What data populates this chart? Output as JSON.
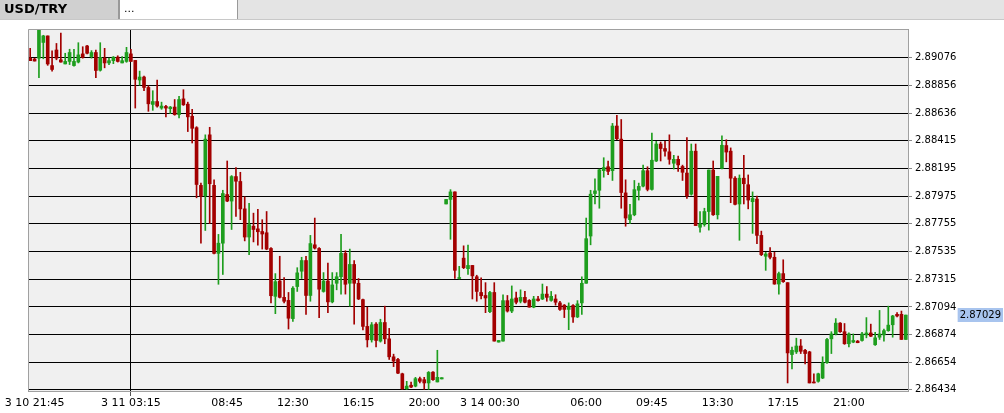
{
  "chart_data": {
    "type": "candlestick",
    "title": "USD/TRY",
    "subtitle": "...",
    "legend": false,
    "grid": true,
    "categories": [
      null,
      "3 10 21:45",
      null,
      null,
      null,
      null,
      null,
      null,
      null,
      null,
      null,
      null,
      null,
      null,
      null,
      null,
      null,
      null,
      null,
      null,
      null,
      null,
      null,
      "3 11 03:15",
      null,
      null,
      null,
      null,
      null,
      null,
      null,
      null,
      null,
      null,
      null,
      null,
      null,
      null,
      null,
      null,
      null,
      null,
      null,
      null,
      null,
      "08:45",
      null,
      null,
      null,
      null,
      null,
      null,
      null,
      null,
      null,
      null,
      null,
      null,
      null,
      null,
      "12:30",
      null,
      null,
      null,
      null,
      null,
      null,
      null,
      null,
      null,
      null,
      null,
      null,
      null,
      null,
      "16:15",
      null,
      null,
      null,
      null,
      null,
      null,
      null,
      null,
      null,
      null,
      null,
      null,
      null,
      null,
      "20:00",
      null,
      null,
      null,
      null,
      null,
      null,
      null,
      null,
      null,
      null,
      null,
      null,
      null,
      null,
      "3 14 00:30",
      null,
      null,
      null,
      null,
      null,
      null,
      null,
      null,
      null,
      null,
      null,
      null,
      null,
      null,
      null,
      null,
      null,
      null,
      null,
      null,
      null,
      "06:00",
      null,
      null,
      null,
      null,
      null,
      null,
      null,
      null,
      null,
      null,
      null,
      null,
      null,
      null,
      "09:45",
      null,
      null,
      null,
      null,
      null,
      null,
      null,
      null,
      null,
      null,
      null,
      null,
      null,
      null,
      "13:30",
      null,
      null,
      null,
      null,
      null,
      null,
      null,
      null,
      null,
      null,
      null,
      null,
      null,
      null,
      "17:15",
      null,
      null,
      null,
      null,
      null,
      null,
      null,
      null,
      null,
      null,
      null,
      null,
      null,
      null,
      "21:00",
      null,
      null,
      null,
      null,
      null,
      null,
      null,
      null,
      null,
      null,
      null,
      null,
      null
    ],
    "ohlc": [
      [
        2.89073,
        2.89151,
        2.89053,
        2.89053
      ],
      [
        2.89066,
        2.89073,
        2.8905,
        2.8905
      ],
      [
        2.89073,
        2.89302,
        2.88918,
        2.89299
      ],
      [
        2.89198,
        2.89255,
        2.89068,
        2.8925
      ],
      [
        2.8925,
        2.8925,
        2.89016,
        2.89027
      ],
      [
        2.89014,
        2.89131,
        2.8897,
        2.88983
      ],
      [
        2.89138,
        2.8919,
        2.8906,
        2.89073
      ],
      [
        2.8906,
        2.89273,
        2.89042,
        2.89042
      ],
      [
        2.89027,
        2.89112,
        2.89027,
        2.89047
      ],
      [
        2.89047,
        2.89144,
        2.89022,
        2.89118
      ],
      [
        2.89014,
        2.89144,
        2.89009,
        2.89047
      ],
      [
        2.89042,
        2.89196,
        2.89035,
        2.89099
      ],
      [
        2.89107,
        2.89164,
        2.89073,
        2.89079
      ],
      [
        2.8917,
        2.89175,
        2.89107,
        2.89112
      ],
      [
        2.89086,
        2.89133,
        2.89073,
        2.89118
      ],
      [
        2.89118,
        2.89138,
        2.88918,
        2.88975
      ],
      [
        2.88977,
        2.89196,
        2.8897,
        2.89079
      ],
      [
        2.89073,
        2.89151,
        2.88996,
        2.89035
      ],
      [
        2.89035,
        2.89073,
        2.89022,
        2.89053
      ],
      [
        2.89053,
        2.89086,
        2.89029,
        2.89081
      ],
      [
        2.89081,
        2.89092,
        2.89042,
        2.89047
      ],
      [
        2.89035,
        2.89086,
        2.89035,
        2.89053
      ],
      [
        2.89047,
        2.89159,
        2.8904,
        2.89118
      ],
      [
        2.89107,
        2.89144,
        2.89047,
        2.89047
      ],
      [
        2.89055,
        2.89055,
        2.88676,
        2.88905
      ],
      [
        2.88899,
        2.8897,
        2.88858,
        2.88923
      ],
      [
        2.88923,
        2.88931,
        2.88814,
        2.8884
      ],
      [
        2.8884,
        2.88853,
        2.8865,
        2.8871
      ],
      [
        2.88705,
        2.88814,
        2.88658,
        2.88728
      ],
      [
        2.88728,
        2.88899,
        2.88684,
        2.88692
      ],
      [
        2.88676,
        2.88723,
        2.88666,
        2.88692
      ],
      [
        2.88689,
        2.88697,
        2.88606,
        2.88676
      ],
      [
        2.88671,
        2.88689,
        2.88632,
        2.88684
      ],
      [
        2.88684,
        2.88744,
        2.88619,
        2.88624
      ],
      [
        2.88624,
        2.8877,
        2.88598,
        2.88744
      ],
      [
        2.88749,
        2.88822,
        2.88697,
        2.88702
      ],
      [
        2.88707,
        2.88723,
        2.88489,
        2.88606
      ],
      [
        2.88611,
        2.88666,
        2.88398,
        2.88515
      ],
      [
        2.8852,
        2.88528,
        2.87962,
        2.88068
      ],
      [
        2.88061,
        2.88079,
        2.87601,
        2.87975
      ],
      [
        2.87978,
        2.88463,
        2.87702,
        2.88429
      ],
      [
        2.88463,
        2.88523,
        2.87757,
        2.88074
      ],
      [
        2.88061,
        2.88105,
        2.87515,
        2.8752
      ],
      [
        2.8752,
        2.87671,
        2.87274,
        2.87601
      ],
      [
        2.87601,
        2.88022,
        2.87352,
        2.87996
      ],
      [
        2.87988,
        2.88255,
        2.87931,
        2.87936
      ],
      [
        2.87936,
        2.88139,
        2.8771,
        2.88131
      ],
      [
        2.88131,
        2.88203,
        2.87814,
        2.88094
      ],
      [
        2.88092,
        2.88165,
        2.87788,
        2.87874
      ],
      [
        2.87874,
        2.8797,
        2.87619,
        2.8765
      ],
      [
        2.8765,
        2.87918,
        2.8751,
        2.87749
      ],
      [
        2.87736,
        2.8784,
        2.87611,
        2.8771
      ],
      [
        2.87715,
        2.87871,
        2.87585,
        2.87692
      ],
      [
        2.87694,
        2.87788,
        2.87554,
        2.87674
      ],
      [
        2.87684,
        2.87853,
        2.87549,
        2.87554
      ],
      [
        2.87559,
        2.87567,
        2.87126,
        2.87183
      ],
      [
        2.87178,
        2.87359,
        2.8704,
        2.87295
      ],
      [
        2.873,
        2.87497,
        2.87165,
        2.8717
      ],
      [
        2.8717,
        2.87328,
        2.87126,
        2.87139
      ],
      [
        2.87146,
        2.87209,
        2.86918,
        2.87004
      ],
      [
        2.87001,
        2.87256,
        2.86978,
        2.87243
      ],
      [
        2.87256,
        2.87406,
        2.87217,
        2.87365
      ],
      [
        2.87378,
        2.87489,
        2.8732,
        2.87463
      ],
      [
        2.87463,
        2.87497,
        2.87035,
        2.87185
      ],
      [
        2.87185,
        2.87663,
        2.87139,
        2.87598
      ],
      [
        2.87588,
        2.87801,
        2.87554,
        2.87562
      ],
      [
        2.87559,
        2.87567,
        2.87009,
        2.87235
      ],
      [
        2.87217,
        2.87367,
        2.87211,
        2.873
      ],
      [
        2.873,
        2.87443,
        2.87048,
        2.87134
      ],
      [
        2.87134,
        2.87367,
        2.87126,
        2.87269
      ],
      [
        2.87282,
        2.87367,
        2.8723,
        2.87334
      ],
      [
        2.87334,
        2.87671,
        2.87196,
        2.8752
      ],
      [
        2.8752,
        2.87541,
        2.87196,
        2.87274
      ],
      [
        2.87282,
        2.87554,
        2.871,
        2.87432
      ],
      [
        2.87432,
        2.87463,
        2.86957,
        2.87282
      ],
      [
        2.87282,
        2.8732,
        2.87152,
        2.87157
      ],
      [
        2.87152,
        2.87157,
        2.8691,
        2.86939
      ],
      [
        2.86939,
        2.87092,
        2.86775,
        2.86832
      ],
      [
        2.86832,
        2.8697,
        2.86814,
        2.86952
      ],
      [
        2.86957,
        2.8697,
        2.86775,
        2.86827
      ],
      [
        2.86822,
        2.86996,
        2.86814,
        2.8697
      ],
      [
        2.8697,
        2.871,
        2.86801,
        2.8684
      ],
      [
        2.8684,
        2.86923,
        2.86676,
        2.86697
      ],
      [
        2.86697,
        2.86718,
        2.86619,
        2.86663
      ],
      [
        2.86676,
        2.86684,
        2.86562,
        2.86567
      ],
      [
        2.86562,
        2.86567,
        2.86438,
        2.86443
      ],
      [
        2.86443,
        2.86502,
        2.86438,
        2.86464
      ],
      [
        2.86471,
        2.86495,
        2.86451,
        2.86456
      ],
      [
        2.86464,
        2.86534,
        2.86458,
        2.86523
      ],
      [
        2.86523,
        2.86536,
        2.86489,
        2.86502
      ],
      [
        2.86515,
        2.86534,
        2.86438,
        2.86489
      ],
      [
        2.86489,
        2.8658,
        2.86438,
        2.86573
      ],
      [
        2.86575,
        2.8658,
        2.8651,
        2.86515
      ],
      [
        2.86497,
        2.86749,
        2.86497,
        2.86534
      ],
      [
        2.86521,
        2.86531,
        2.86521,
        2.86531
      ],
      [
        2.87913,
        2.87949,
        2.87913,
        2.87949
      ],
      [
        2.87949,
        2.88027,
        2.87632,
        2.88009
      ],
      [
        2.88009,
        2.88009,
        2.8732,
        2.87385
      ],
      [
        2.8732,
        2.87417,
        2.87315,
        2.87326
      ],
      [
        2.87482,
        2.8758,
        2.87398,
        2.87406
      ],
      [
        2.87398,
        2.87585,
        2.87352,
        2.87424
      ],
      [
        2.87424,
        2.87424,
        2.87157,
        2.87341
      ],
      [
        2.87334,
        2.87346,
        2.87139,
        2.87217
      ],
      [
        2.87209,
        2.87326,
        2.87157,
        2.87183
      ],
      [
        2.87185,
        2.87287,
        2.87048,
        2.87165
      ],
      [
        2.87056,
        2.87217,
        2.87048,
        2.87209
      ],
      [
        2.87209,
        2.87287,
        2.86822,
        2.86822
      ],
      [
        2.86814,
        2.86827,
        2.86814,
        2.86827
      ],
      [
        2.86822,
        2.87191,
        2.86822,
        2.87144
      ],
      [
        2.87144,
        2.87185,
        2.87053,
        2.87061
      ],
      [
        2.87061,
        2.87261,
        2.87048,
        2.87157
      ],
      [
        2.87165,
        2.87211,
        2.87118,
        2.87131
      ],
      [
        2.87139,
        2.8723,
        2.87126,
        2.8717
      ],
      [
        2.8717,
        2.87217,
        2.87126,
        2.87131
      ],
      [
        2.87146,
        2.87152,
        2.87092,
        2.87092
      ],
      [
        2.87092,
        2.87178,
        2.87087,
        2.87157
      ],
      [
        2.87157,
        2.87178,
        2.87139,
        2.87144
      ],
      [
        2.87157,
        2.87276,
        2.87152,
        2.87196
      ],
      [
        2.87196,
        2.87256,
        2.87139,
        2.8717
      ],
      [
        2.87146,
        2.87217,
        2.87139,
        2.87178
      ],
      [
        2.87157,
        2.87191,
        2.87108,
        2.87131
      ],
      [
        2.87126,
        2.87139,
        2.87066,
        2.87074
      ],
      [
        2.87108,
        2.87113,
        2.87009,
        2.87074
      ],
      [
        2.87074,
        2.87126,
        2.86913,
        2.871
      ],
      [
        2.87105,
        2.87113,
        2.8697,
        2.87014
      ],
      [
        2.87014,
        2.87144,
        2.87009,
        2.87118
      ],
      [
        2.87126,
        2.87334,
        2.87035,
        2.87282
      ],
      [
        2.87282,
        2.87801,
        2.87282,
        2.87637
      ],
      [
        2.87658,
        2.88022,
        2.87588,
        2.87991
      ],
      [
        2.87996,
        2.88113,
        2.87913,
        2.88017
      ],
      [
        2.88022,
        2.88191,
        2.87879,
        2.88185
      ],
      [
        2.88178,
        2.88281,
        2.88126,
        2.88203
      ],
      [
        2.88209,
        2.88255,
        2.88146,
        2.88172
      ],
      [
        2.88178,
        2.88554,
        2.881,
        2.88533
      ],
      [
        2.88533,
        2.88619,
        2.88424,
        2.88432
      ],
      [
        2.88429,
        2.88585,
        2.87879,
        2.88004
      ],
      [
        2.88001,
        2.88105,
        2.87736,
        2.87801
      ],
      [
        2.87788,
        2.8791,
        2.87757,
        2.87827
      ],
      [
        2.87827,
        2.881,
        2.87819,
        2.88027
      ],
      [
        2.88022,
        2.88079,
        2.87944,
        2.88053
      ],
      [
        2.88055,
        2.88222,
        2.88048,
        2.88178
      ],
      [
        2.88178,
        2.88209,
        2.88017,
        2.88029
      ],
      [
        2.88029,
        2.88476,
        2.88022,
        2.88261
      ],
      [
        2.88255,
        2.88411,
        2.8825,
        2.8839
      ],
      [
        2.8839,
        2.88406,
        2.88255,
        2.88354
      ],
      [
        2.88354,
        2.88411,
        2.88294,
        2.88333
      ],
      [
        2.88328,
        2.88463,
        2.88229,
        2.88268
      ],
      [
        2.88237,
        2.883,
        2.88191,
        2.88268
      ],
      [
        2.88268,
        2.88294,
        2.88172,
        2.88224
      ],
      [
        2.88211,
        2.88222,
        2.881,
        2.88165
      ],
      [
        2.88159,
        2.88442,
        2.87957,
        2.87978
      ],
      [
        2.87991,
        2.8839,
        2.87983,
        2.88333
      ],
      [
        2.88333,
        2.8839,
        2.87741,
        2.87741
      ],
      [
        2.87728,
        2.87853,
        2.87689,
        2.87754
      ],
      [
        2.87749,
        2.87879,
        2.87736,
        2.87853
      ],
      [
        2.87853,
        2.88183,
        2.87705,
        2.88183
      ],
      [
        2.88183,
        2.88255,
        2.87822,
        2.87827
      ],
      [
        2.87827,
        2.88133,
        2.87793,
        2.88133
      ],
      [
        2.88196,
        2.88455,
        2.88191,
        2.8838
      ],
      [
        2.88378,
        2.88424,
        2.88248,
        2.88326
      ],
      [
        2.88333,
        2.88359,
        2.87923,
        2.88118
      ],
      [
        2.88118,
        2.88131,
        2.87905,
        2.8791
      ],
      [
        2.87913,
        2.88144,
        2.87624,
        2.88118
      ],
      [
        2.88118,
        2.883,
        2.87913,
        2.88074
      ],
      [
        2.88066,
        2.88144,
        2.87874,
        2.87944
      ],
      [
        2.87931,
        2.88009,
        2.87679,
        2.87957
      ],
      [
        2.87952,
        2.87975,
        2.87598,
        2.87663
      ],
      [
        2.87663,
        2.87697,
        2.87502,
        2.8751
      ],
      [
        2.87497,
        2.87528,
        2.87385,
        2.87515
      ],
      [
        2.87523,
        2.87567,
        2.87476,
        2.87489
      ],
      [
        2.87489,
        2.87528,
        2.87274,
        2.87276
      ],
      [
        2.87276,
        2.87372,
        2.87196,
        2.87359
      ],
      [
        2.87359,
        2.87469,
        2.87289,
        2.87295
      ],
      [
        2.87287,
        2.87287,
        2.86489,
        2.86728
      ],
      [
        2.86715,
        2.86775,
        2.86601,
        2.86749
      ],
      [
        2.86736,
        2.86845,
        2.86723,
        2.86783
      ],
      [
        2.86783,
        2.86835,
        2.86723,
        2.86741
      ],
      [
        2.86749,
        2.86757,
        2.8664,
        2.86723
      ],
      [
        2.86736,
        2.86741,
        2.86489,
        2.86489
      ],
      [
        2.86497,
        2.86562,
        2.86489,
        2.86489
      ],
      [
        2.86502,
        2.86567,
        2.86495,
        2.86562
      ],
      [
        2.86528,
        2.86697,
        2.86523,
        2.8665
      ],
      [
        2.8665,
        2.86845,
        2.86645,
        2.86835
      ],
      [
        2.8684,
        2.86897,
        2.86723,
        2.86879
      ],
      [
        2.86879,
        2.87001,
        2.86871,
        2.86965
      ],
      [
        2.86965,
        2.8697,
        2.86892,
        2.86897
      ],
      [
        2.86897,
        2.86962,
        2.86796,
        2.86801
      ],
      [
        2.86801,
        2.86887,
        2.86775,
        2.86879
      ],
      [
        2.86814,
        2.86879,
        2.86809,
        2.86827
      ],
      [
        2.86822,
        2.86827,
        2.86809,
        2.86809
      ],
      [
        2.86827,
        2.86892,
        2.86822,
        2.86879
      ],
      [
        2.86871,
        2.87009,
        2.86848,
        2.86887
      ],
      [
        2.86887,
        2.86957,
        2.86858,
        2.86861
      ],
      [
        2.86793,
        2.86892,
        2.86788,
        2.86848
      ],
      [
        2.86853,
        2.87066,
        2.86835,
        2.86879
      ],
      [
        2.86871,
        2.86918,
        2.86822,
        2.86905
      ],
      [
        2.86905,
        2.871,
        2.869,
        2.86949
      ],
      [
        2.86952,
        2.87027,
        2.86853,
        2.87022
      ],
      [
        2.87035,
        2.87048,
        2.87014,
        2.87022
      ],
      [
        2.87035,
        2.87061,
        2.86835,
        2.86835
      ],
      [
        2.86835,
        2.87029,
        2.86835,
        2.87029
      ]
    ],
    "colors": [
      "#a30000",
      "#a30000",
      "#1e9e1e",
      "#1e9e1e",
      "#a30000",
      "#a30000",
      "#a30000",
      "#a30000",
      "#1e9e1e",
      "#1e9e1e",
      "#1e9e1e",
      "#1e9e1e",
      "#a30000",
      "#a30000",
      "#1e9e1e",
      "#a30000",
      "#1e9e1e",
      "#a30000",
      "#1e9e1e",
      "#1e9e1e",
      "#a30000",
      "#1e9e1e",
      "#1e9e1e",
      "#a30000",
      "#a30000",
      "#1e9e1e",
      "#a30000",
      "#a30000",
      "#1e9e1e",
      "#a30000",
      "#1e9e1e",
      "#a30000",
      "#1e9e1e",
      "#a30000",
      "#1e9e1e",
      "#a30000",
      "#a30000",
      "#a30000",
      "#a30000",
      "#a30000",
      "#1e9e1e",
      "#a30000",
      "#a30000",
      "#1e9e1e",
      "#1e9e1e",
      "#a30000",
      "#1e9e1e",
      "#a30000",
      "#a30000",
      "#a30000",
      "#1e9e1e",
      "#a30000",
      "#a30000",
      "#a30000",
      "#a30000",
      "#a30000",
      "#1e9e1e",
      "#a30000",
      "#a30000",
      "#a30000",
      "#1e9e1e",
      "#1e9e1e",
      "#1e9e1e",
      "#a30000",
      "#1e9e1e",
      "#a30000",
      "#a30000",
      "#1e9e1e",
      "#a30000",
      "#1e9e1e",
      "#1e9e1e",
      "#1e9e1e",
      "#a30000",
      "#1e9e1e",
      "#a30000",
      "#a30000",
      "#a30000",
      "#a30000",
      "#1e9e1e",
      "#a30000",
      "#1e9e1e",
      "#a30000",
      "#a30000",
      "#a30000",
      "#a30000",
      "#a30000",
      "#1e9e1e",
      "#a30000",
      "#1e9e1e",
      "#a30000",
      "#a30000",
      "#1e9e1e",
      "#a30000",
      "#1e9e1e",
      "#1e9e1e",
      "#1e9e1e",
      "#1e9e1e",
      "#a30000",
      "#1e9e1e",
      "#a30000",
      "#1e9e1e",
      "#a30000",
      "#a30000",
      "#a30000",
      "#a30000",
      "#1e9e1e",
      "#a30000",
      "#1e9e1e",
      "#1e9e1e",
      "#a30000",
      "#1e9e1e",
      "#a30000",
      "#1e9e1e",
      "#a30000",
      "#a30000",
      "#1e9e1e",
      "#a30000",
      "#1e9e1e",
      "#a30000",
      "#1e9e1e",
      "#a30000",
      "#a30000",
      "#a30000",
      "#1e9e1e",
      "#a30000",
      "#1e9e1e",
      "#1e9e1e",
      "#1e9e1e",
      "#1e9e1e",
      "#1e9e1e",
      "#1e9e1e",
      "#1e9e1e",
      "#a30000",
      "#1e9e1e",
      "#a30000",
      "#a30000",
      "#a30000",
      "#1e9e1e",
      "#1e9e1e",
      "#1e9e1e",
      "#1e9e1e",
      "#a30000",
      "#1e9e1e",
      "#1e9e1e",
      "#a30000",
      "#a30000",
      "#a30000",
      "#1e9e1e",
      "#a30000",
      "#a30000",
      "#a30000",
      "#1e9e1e",
      "#a30000",
      "#1e9e1e",
      "#1e9e1e",
      "#1e9e1e",
      "#a30000",
      "#1e9e1e",
      "#1e9e1e",
      "#a30000",
      "#a30000",
      "#a30000",
      "#1e9e1e",
      "#a30000",
      "#a30000",
      "#1e9e1e",
      "#a30000",
      "#a30000",
      "#1e9e1e",
      "#a30000",
      "#a30000",
      "#1e9e1e",
      "#a30000",
      "#a30000",
      "#1e9e1e",
      "#1e9e1e",
      "#a30000",
      "#a30000",
      "#a30000",
      "#a30000",
      "#1e9e1e",
      "#1e9e1e",
      "#1e9e1e",
      "#1e9e1e",
      "#1e9e1e",
      "#a30000",
      "#a30000",
      "#1e9e1e",
      "#1e9e1e",
      "#a30000",
      "#1e9e1e",
      "#1e9e1e",
      "#a30000",
      "#1e9e1e",
      "#1e9e1e",
      "#1e9e1e",
      "#1e9e1e",
      "#1e9e1e",
      "#a30000",
      "#a30000",
      "#1e9e1e"
    ],
    "ylim": [
      2.86425,
      2.89305
    ],
    "yticks": [
      2.86434,
      2.86654,
      2.86874,
      2.87094,
      2.87315,
      2.87535,
      2.87755,
      2.87975,
      2.88195,
      2.88415,
      2.88636,
      2.88856,
      2.89076
    ],
    "annotations": [
      "2.87029"
    ]
  }
}
